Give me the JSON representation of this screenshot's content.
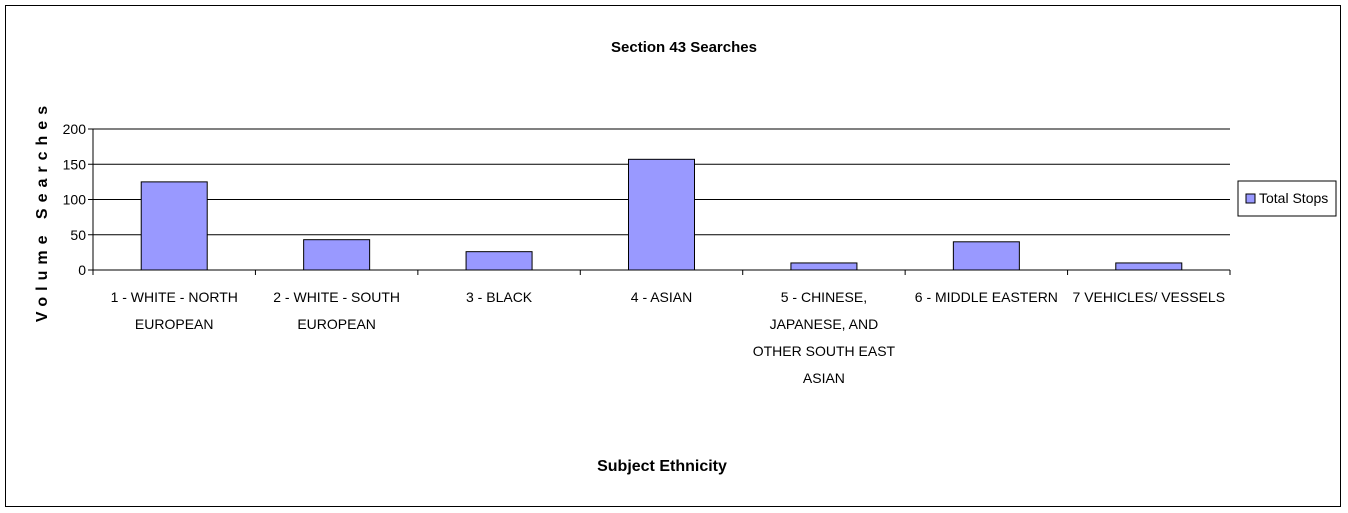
{
  "chart_data": {
    "type": "bar",
    "title": "Section 43 Searches",
    "xlabel": "Subject Ethnicity",
    "ylabel": "Volume Searches",
    "categories": [
      "1 - WHITE - NORTH EUROPEAN",
      "2 - WHITE - SOUTH EUROPEAN",
      "3 - BLACK",
      "4 - ASIAN",
      "5 - CHINESE, JAPANESE, AND OTHER SOUTH EAST ASIAN",
      "6 - MIDDLE EASTERN",
      "7 VEHICLES/ VESSELS"
    ],
    "category_lines": [
      [
        "1 - WHITE - NORTH",
        "EUROPEAN"
      ],
      [
        "2 - WHITE - SOUTH",
        "EUROPEAN"
      ],
      [
        "3 - BLACK"
      ],
      [
        "4 - ASIAN"
      ],
      [
        "5 - CHINESE,",
        "JAPANESE, AND",
        "OTHER SOUTH EAST",
        "ASIAN"
      ],
      [
        "6 - MIDDLE EASTERN"
      ],
      [
        "7 VEHICLES/ VESSELS"
      ]
    ],
    "series": [
      {
        "name": "Total Stops",
        "values": [
          125,
          43,
          26,
          157,
          10,
          40,
          10
        ],
        "color": "#9999ff"
      }
    ],
    "ylim": [
      0,
      200
    ],
    "yticks": [
      0,
      50,
      100,
      150,
      200
    ],
    "grid": true,
    "legend": "right"
  }
}
